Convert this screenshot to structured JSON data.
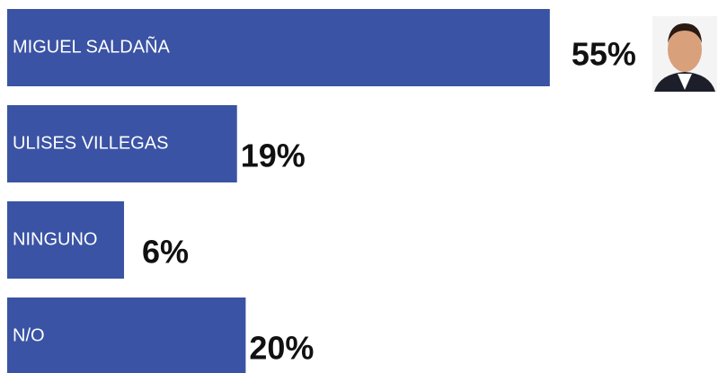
{
  "chart_data": {
    "type": "bar",
    "orientation": "horizontal",
    "categories": [
      "MIGUEL SALDAÑA",
      "ULISES VILLEGAS",
      "NINGUNO",
      "N/O"
    ],
    "values": [
      55,
      19,
      6,
      20
    ],
    "value_labels": [
      "55%",
      "19%",
      "6%",
      "20%"
    ],
    "color": "#3a53a4"
  }
}
